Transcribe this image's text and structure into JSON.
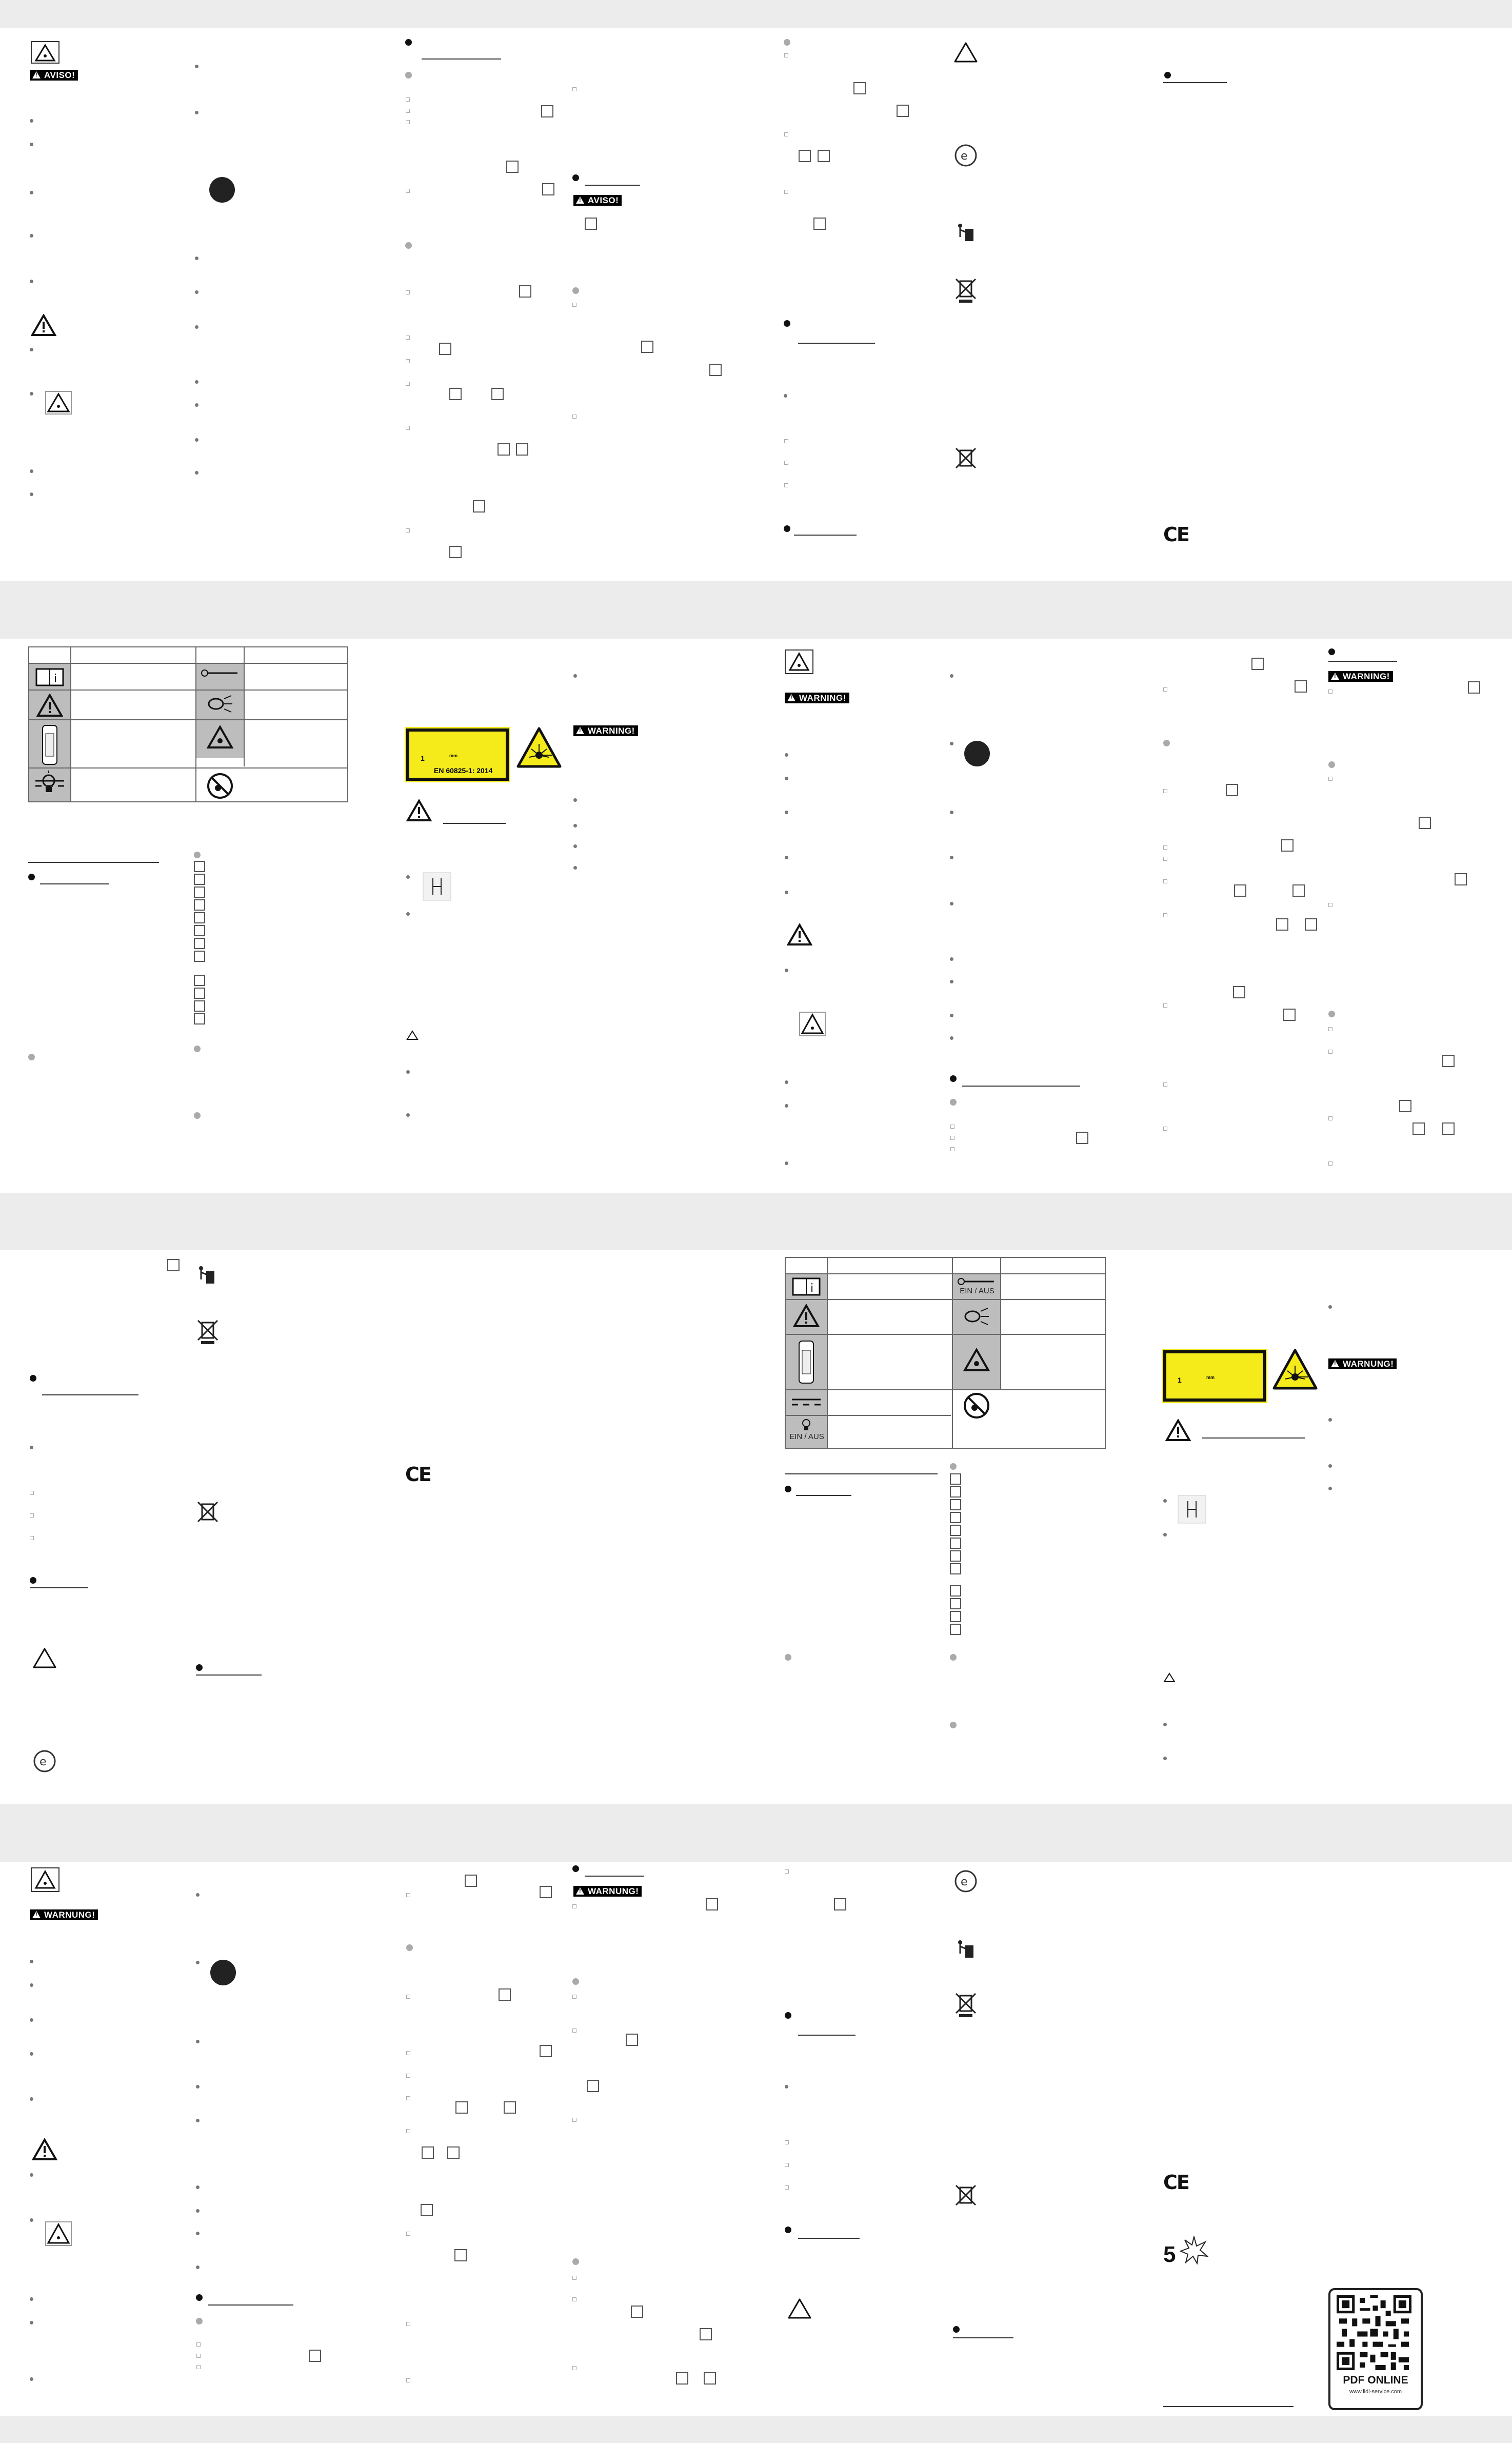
{
  "warnings": {
    "aviso": "AVISO!",
    "warning": "WARNING!",
    "warnung": "WARNUNG!"
  },
  "laser_label": {
    "standard": "EN 60825-1: 2014",
    "class_char": "1",
    "small_text": "mm"
  },
  "symbols_table": {
    "on_off": "EIN / AUS"
  },
  "marks": {
    "ce": "CE",
    "star_rating": "5",
    "pdf_online": "PDF ONLINE",
    "pdf_url": "www.lidl-service.com"
  },
  "colors": {
    "band": "#ececec",
    "laser_yellow": "#f5eb1b",
    "table_grey": "#bdbdbd"
  }
}
